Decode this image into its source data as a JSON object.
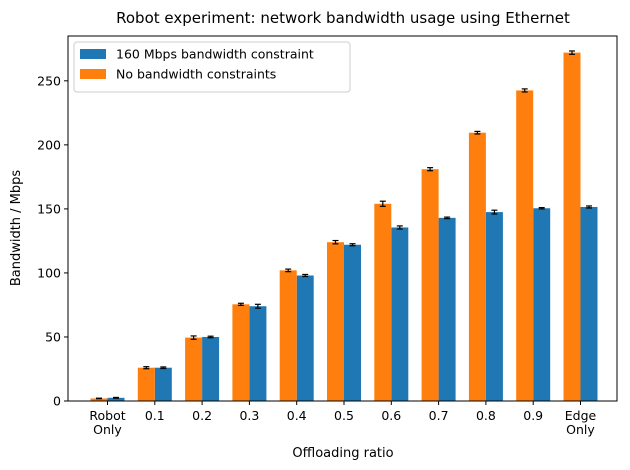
{
  "chart_data": {
    "type": "bar",
    "title": "Robot experiment: network bandwidth usage using Ethernet",
    "xlabel": "Offloading ratio",
    "ylabel": "Bandwidth / Mbps",
    "categories": [
      [
        "Robot",
        "Only"
      ],
      [
        "0.1"
      ],
      [
        "0.2"
      ],
      [
        "0.3"
      ],
      [
        "0.4"
      ],
      [
        "0.5"
      ],
      [
        "0.6"
      ],
      [
        "0.7"
      ],
      [
        "0.8"
      ],
      [
        "0.9"
      ],
      [
        "Edge",
        "Only"
      ]
    ],
    "ylim": [
      0,
      285
    ],
    "yticks": [
      0,
      50,
      100,
      150,
      200,
      250
    ],
    "grid": false,
    "legend_position": "top-left",
    "series": [
      {
        "name": "160 Mbps bandwidth constraint",
        "color": "#1f77b4",
        "position": "right",
        "values": [
          2.5,
          26,
          50,
          74,
          98,
          122,
          135.5,
          143,
          147.5,
          150.5,
          151.5
        ],
        "errors": [
          0.3,
          0.6,
          0.6,
          1.5,
          0.8,
          0.8,
          1.2,
          0.6,
          1.5,
          0.5,
          0.8
        ]
      },
      {
        "name": "No bandwidth constraints",
        "color": "#ff7f0e",
        "position": "left",
        "values": [
          2,
          26,
          49.5,
          75.5,
          102,
          124,
          154,
          181,
          209.5,
          242.5,
          272
        ],
        "errors": [
          0.2,
          0.8,
          1.3,
          0.8,
          1.0,
          1.3,
          2.0,
          1.2,
          1.0,
          1.2,
          1.3
        ]
      }
    ]
  }
}
